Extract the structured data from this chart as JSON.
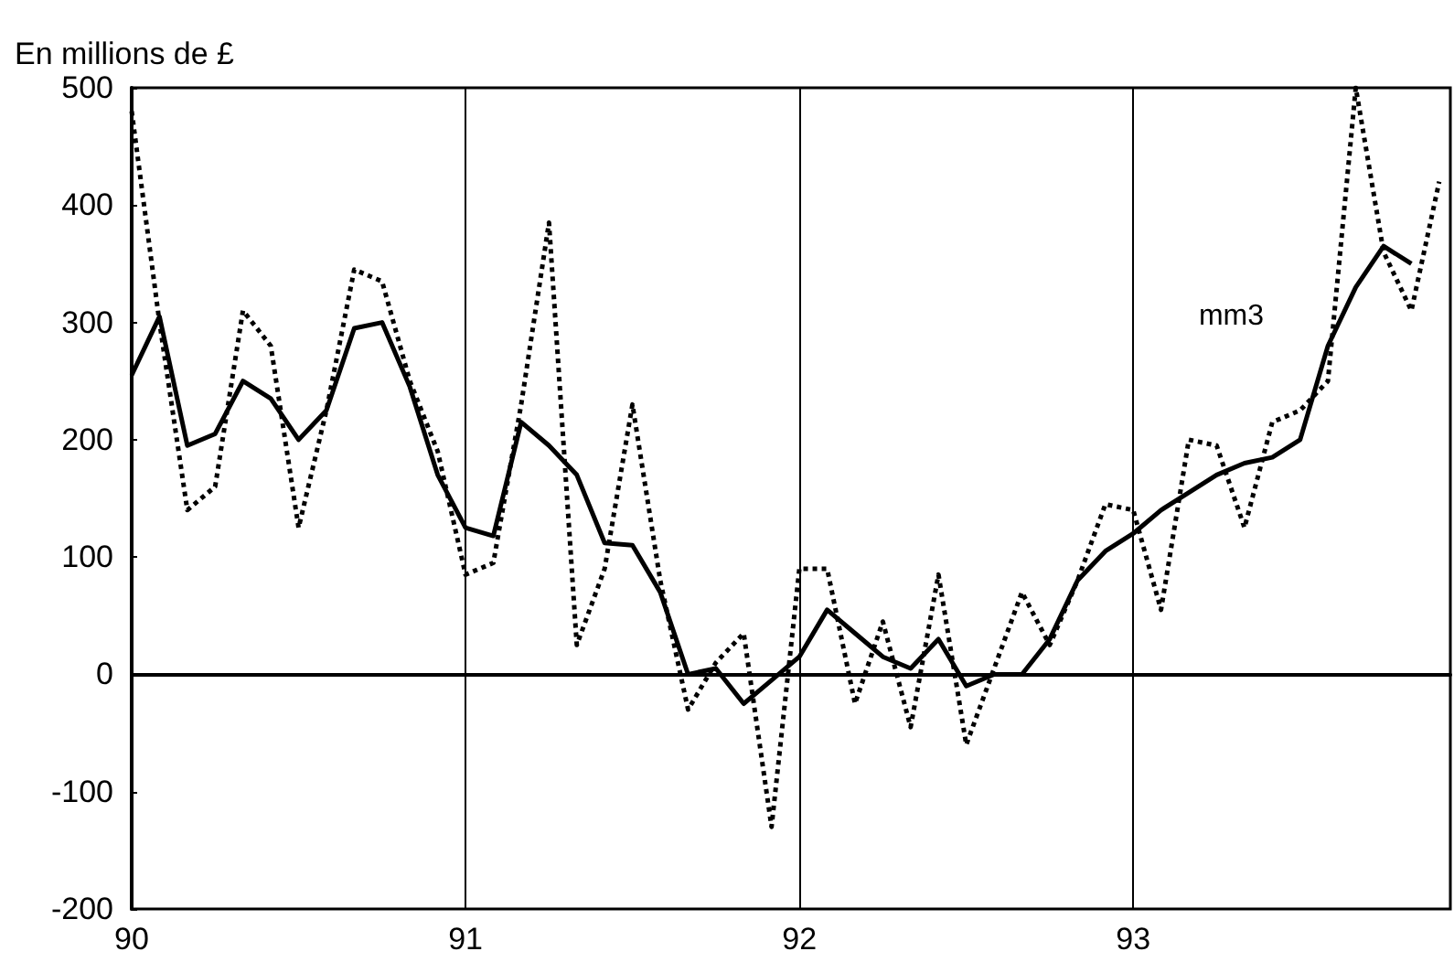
{
  "chart_data": {
    "type": "line",
    "ylabel": "En millions de £",
    "xlim": [
      90,
      93.95
    ],
    "xticks": [
      90,
      91,
      92,
      93
    ],
    "ylim": [
      -200,
      500
    ],
    "yticks": [
      -200,
      -100,
      0,
      100,
      200,
      300,
      400,
      500
    ],
    "grid": false,
    "marker": "none",
    "ref_lines": [
      {
        "axis": "x",
        "value": 91,
        "color": "#000000",
        "line_style": "solid"
      },
      {
        "axis": "x",
        "value": 92,
        "color": "#000000",
        "line_style": "solid"
      },
      {
        "axis": "x",
        "value": 93,
        "color": "#000000",
        "line_style": "solid"
      },
      {
        "axis": "y",
        "value": 0,
        "color": "#000000",
        "line_style": "solid"
      }
    ],
    "annotations": [
      "mm3"
    ],
    "series": [
      {
        "color": "#000000",
        "line_style": "dotted",
        "x": [
          90,
          90.0833,
          90.1667,
          90.25,
          90.3333,
          90.4167,
          90.5,
          90.5833,
          90.6667,
          90.75,
          90.8333,
          90.9167,
          91,
          91.0833,
          91.1667,
          91.25,
          91.3333,
          91.4167,
          91.5,
          91.5833,
          91.6667,
          91.75,
          91.8333,
          91.9167,
          92,
          92.0833,
          92.1667,
          92.25,
          92.3333,
          92.4167,
          92.5,
          92.5833,
          92.6667,
          92.75,
          92.8333,
          92.9167,
          93,
          93.0833,
          93.1667,
          93.25,
          93.3333,
          93.4167,
          93.5,
          93.5833,
          93.6667,
          93.75,
          93.8333,
          93.9167
        ],
        "values": [
          480,
          300,
          140,
          160,
          310,
          280,
          125,
          225,
          345,
          335,
          250,
          190,
          85,
          95,
          230,
          385,
          25,
          90,
          230,
          80,
          -30,
          10,
          35,
          -130,
          90,
          90,
          -25,
          45,
          -45,
          85,
          -60,
          5,
          70,
          25,
          80,
          145,
          140,
          55,
          200,
          195,
          125,
          215,
          225,
          250,
          500,
          360,
          310,
          420
        ]
      },
      {
        "color": "#000000",
        "line_style": "solid",
        "x": [
          90,
          90.0833,
          90.1667,
          90.25,
          90.3333,
          90.4167,
          90.5,
          90.5833,
          90.6667,
          90.75,
          90.8333,
          90.9167,
          91,
          91.0833,
          91.1667,
          91.25,
          91.3333,
          91.4167,
          91.5,
          91.5833,
          91.6667,
          91.75,
          91.8333,
          91.9167,
          92,
          92.0833,
          92.1667,
          92.25,
          92.3333,
          92.4167,
          92.5,
          92.5833,
          92.6667,
          92.75,
          92.8333,
          92.9167,
          93,
          93.0833,
          93.1667,
          93.25,
          93.3333,
          93.4167,
          93.5,
          93.5833,
          93.6667,
          93.75,
          93.8333
        ],
        "values": [
          255,
          305,
          195,
          205,
          250,
          235,
          200,
          225,
          295,
          300,
          245,
          170,
          125,
          118,
          215,
          195,
          170,
          112,
          110,
          70,
          0,
          5,
          -25,
          -5,
          15,
          55,
          35,
          15,
          5,
          30,
          -10,
          0,
          0,
          30,
          80,
          105,
          120,
          140,
          155,
          170,
          180,
          185,
          200,
          280,
          330,
          365,
          350
        ]
      }
    ]
  }
}
